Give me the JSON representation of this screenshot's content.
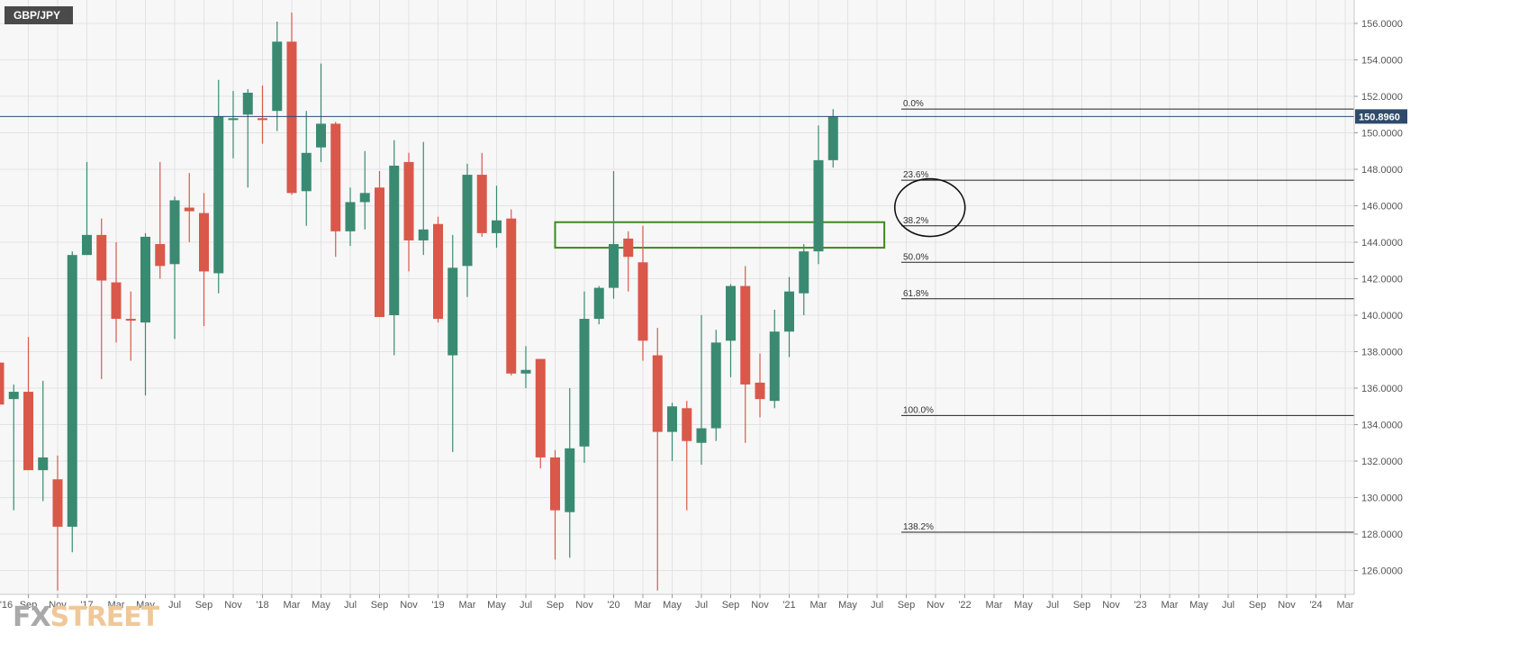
{
  "symbol": "GBP/JPY",
  "logo": {
    "part1": "FX",
    "part2": "STREET"
  },
  "current_price_label": "150.8960",
  "colors": {
    "up": "#3a8a72",
    "down": "#d9584a",
    "grid": "#e3e3e3",
    "zone": "#3d8a1e",
    "price_line": "#2f4a6b",
    "axis_text": "#555555",
    "background": "#f7f7f7"
  },
  "chart_data": {
    "type": "candlestick",
    "timeframe": "monthly",
    "ylim": [
      124.8,
      157.0
    ],
    "y_ticks": [
      "156.0000",
      "154.0000",
      "152.0000",
      "150.0000",
      "148.0000",
      "146.0000",
      "144.0000",
      "142.0000",
      "140.0000",
      "138.0000",
      "136.0000",
      "134.0000",
      "132.0000",
      "130.0000",
      "128.0000",
      "126.0000"
    ],
    "x_tick_labels": [
      "'16",
      "Sep",
      "Nov",
      "'17",
      "Mar",
      "May",
      "Jul",
      "Sep",
      "Nov",
      "'18",
      "Mar",
      "May",
      "Jul",
      "Sep",
      "Nov",
      "'19",
      "Mar",
      "May",
      "Jul",
      "Sep",
      "Nov",
      "'20",
      "Mar",
      "May",
      "Jul",
      "Sep",
      "Nov",
      "'21",
      "Mar",
      "May",
      "Jul",
      "Sep",
      "Nov",
      "'22",
      "Mar",
      "May",
      "Jul",
      "Sep",
      "Nov",
      "'23",
      "Mar",
      "May",
      "Jul",
      "Sep",
      "Nov",
      "'24",
      "Mar"
    ],
    "candles": [
      {
        "o": 137.4,
        "h": 143.2,
        "l": 128.8,
        "c": 135.1
      },
      {
        "o": 135.4,
        "h": 136.2,
        "l": 129.3,
        "c": 135.8
      },
      {
        "o": 135.8,
        "h": 138.8,
        "l": 131.5,
        "c": 131.5
      },
      {
        "o": 131.5,
        "h": 136.4,
        "l": 129.8,
        "c": 132.2
      },
      {
        "o": 131.0,
        "h": 132.3,
        "l": 124.9,
        "c": 128.4
      },
      {
        "o": 128.4,
        "h": 143.5,
        "l": 127.0,
        "c": 143.3
      },
      {
        "o": 143.3,
        "h": 148.4,
        "l": 143.3,
        "c": 144.4
      },
      {
        "o": 144.4,
        "h": 145.3,
        "l": 136.5,
        "c": 141.9
      },
      {
        "o": 141.8,
        "h": 144.0,
        "l": 138.5,
        "c": 139.8
      },
      {
        "o": 139.8,
        "h": 141.3,
        "l": 137.5,
        "c": 139.7
      },
      {
        "o": 139.6,
        "h": 144.5,
        "l": 135.6,
        "c": 144.3
      },
      {
        "o": 143.9,
        "h": 148.4,
        "l": 142.0,
        "c": 142.7
      },
      {
        "o": 142.8,
        "h": 146.5,
        "l": 138.7,
        "c": 146.3
      },
      {
        "o": 145.9,
        "h": 147.8,
        "l": 144.0,
        "c": 145.7
      },
      {
        "o": 145.6,
        "h": 146.7,
        "l": 139.4,
        "c": 142.4
      },
      {
        "o": 142.3,
        "h": 152.9,
        "l": 141.2,
        "c": 150.9
      },
      {
        "o": 150.7,
        "h": 152.3,
        "l": 148.6,
        "c": 150.8
      },
      {
        "o": 151.0,
        "h": 152.4,
        "l": 147.0,
        "c": 152.2
      },
      {
        "o": 150.8,
        "h": 152.6,
        "l": 149.4,
        "c": 150.7
      },
      {
        "o": 151.2,
        "h": 156.1,
        "l": 150.1,
        "c": 155.0
      },
      {
        "o": 155.0,
        "h": 156.6,
        "l": 146.6,
        "c": 146.7
      },
      {
        "o": 146.8,
        "h": 151.2,
        "l": 144.9,
        "c": 148.9
      },
      {
        "o": 149.2,
        "h": 153.8,
        "l": 148.4,
        "c": 150.5
      },
      {
        "o": 150.5,
        "h": 150.6,
        "l": 143.2,
        "c": 144.6
      },
      {
        "o": 144.6,
        "h": 147.0,
        "l": 143.8,
        "c": 146.2
      },
      {
        "o": 146.2,
        "h": 149.0,
        "l": 144.7,
        "c": 146.7
      },
      {
        "o": 147.0,
        "h": 147.9,
        "l": 139.9,
        "c": 139.9
      },
      {
        "o": 140.0,
        "h": 149.6,
        "l": 137.8,
        "c": 148.2
      },
      {
        "o": 148.4,
        "h": 148.9,
        "l": 142.4,
        "c": 144.1
      },
      {
        "o": 144.1,
        "h": 149.5,
        "l": 143.3,
        "c": 144.7
      },
      {
        "o": 145.0,
        "h": 145.4,
        "l": 139.6,
        "c": 139.8
      },
      {
        "o": 137.8,
        "h": 144.4,
        "l": 132.5,
        "c": 142.6
      },
      {
        "o": 142.7,
        "h": 148.3,
        "l": 141.0,
        "c": 147.7
      },
      {
        "o": 147.7,
        "h": 148.9,
        "l": 144.3,
        "c": 144.5
      },
      {
        "o": 144.5,
        "h": 147.1,
        "l": 143.7,
        "c": 145.2
      },
      {
        "o": 145.3,
        "h": 145.8,
        "l": 136.7,
        "c": 136.8
      },
      {
        "o": 136.8,
        "h": 138.3,
        "l": 136.0,
        "c": 137.0
      },
      {
        "o": 137.6,
        "h": 137.6,
        "l": 131.6,
        "c": 132.2
      },
      {
        "o": 132.2,
        "h": 132.6,
        "l": 126.6,
        "c": 129.3
      },
      {
        "o": 129.2,
        "h": 136.0,
        "l": 126.7,
        "c": 132.7
      },
      {
        "o": 132.8,
        "h": 141.3,
        "l": 131.9,
        "c": 139.8
      },
      {
        "o": 139.8,
        "h": 141.6,
        "l": 139.5,
        "c": 141.5
      },
      {
        "o": 141.5,
        "h": 147.9,
        "l": 140.9,
        "c": 143.9
      },
      {
        "o": 144.2,
        "h": 144.6,
        "l": 141.3,
        "c": 143.2
      },
      {
        "o": 142.9,
        "h": 144.9,
        "l": 137.5,
        "c": 138.6
      },
      {
        "o": 137.8,
        "h": 139.3,
        "l": 124.9,
        "c": 133.6
      },
      {
        "o": 133.6,
        "h": 135.2,
        "l": 132.0,
        "c": 135.0
      },
      {
        "o": 134.9,
        "h": 135.3,
        "l": 129.3,
        "c": 133.1
      },
      {
        "o": 133.0,
        "h": 140.0,
        "l": 131.8,
        "c": 133.8
      },
      {
        "o": 133.8,
        "h": 139.2,
        "l": 133.1,
        "c": 138.5
      },
      {
        "o": 138.6,
        "h": 141.7,
        "l": 136.6,
        "c": 141.6
      },
      {
        "o": 141.6,
        "h": 142.7,
        "l": 133.0,
        "c": 136.2
      },
      {
        "o": 136.3,
        "h": 137.9,
        "l": 134.4,
        "c": 135.4
      },
      {
        "o": 135.3,
        "h": 140.3,
        "l": 134.9,
        "c": 139.1
      },
      {
        "o": 139.1,
        "h": 142.1,
        "l": 137.7,
        "c": 141.3
      },
      {
        "o": 141.2,
        "h": 143.9,
        "l": 140.0,
        "c": 143.5
      },
      {
        "o": 143.5,
        "h": 150.4,
        "l": 142.8,
        "c": 148.5
      },
      {
        "o": 148.5,
        "h": 151.3,
        "l": 148.1,
        "c": 150.9
      }
    ],
    "fibonacci": [
      {
        "label": "0.0%",
        "price": 151.3
      },
      {
        "label": "23.6%",
        "price": 147.4
      },
      {
        "label": "38.2%",
        "price": 144.9
      },
      {
        "label": "50.0%",
        "price": 142.9
      },
      {
        "label": "61.8%",
        "price": 140.9
      },
      {
        "label": "100.0%",
        "price": 134.5
      },
      {
        "label": "138.2%",
        "price": 128.1
      }
    ],
    "current_price": 150.896,
    "zone": {
      "top": 145.1,
      "bottom": 143.7,
      "start_index": 38,
      "end_index": 60.5
    },
    "circle_annotation": {
      "index": 63,
      "price": 145.9
    }
  }
}
